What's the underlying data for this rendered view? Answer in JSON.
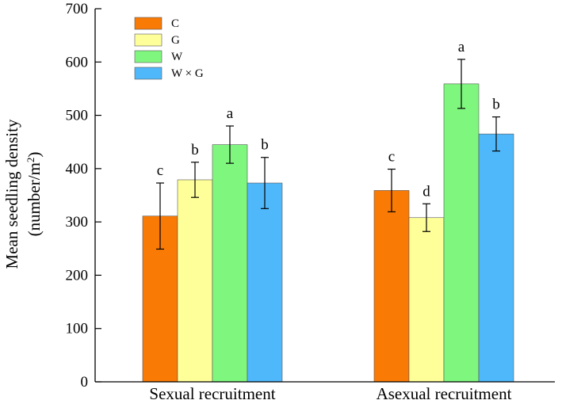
{
  "chart_data": {
    "type": "bar",
    "categories": [
      "Sexual recruitment",
      "Asexual recruitment"
    ],
    "ylabel_line1": "Mean seedling density",
    "ylabel_line2": "(number/m",
    "ylabel_sup": "2",
    "ylabel_close": ")",
    "ylim": [
      0,
      700
    ],
    "yticks": [
      0,
      100,
      200,
      300,
      400,
      500,
      600,
      700
    ],
    "grid": false,
    "legend_position": "top-left",
    "series": [
      {
        "name": "C",
        "color": "#f97a05",
        "values": [
          311,
          359
        ],
        "errors": [
          62,
          40
        ],
        "letters": [
          "c",
          "c"
        ]
      },
      {
        "name": "G",
        "color": "#ffff99",
        "values": [
          379,
          308
        ],
        "errors": [
          33,
          26
        ],
        "letters": [
          "b",
          "d"
        ]
      },
      {
        "name": "W",
        "color": "#7ff77f",
        "values": [
          445,
          559
        ],
        "errors": [
          35,
          46
        ],
        "letters": [
          "a",
          "a"
        ]
      },
      {
        "name": "W × G",
        "color": "#4fb8fb",
        "values": [
          373,
          465
        ],
        "errors": [
          48,
          32
        ],
        "letters": [
          "b",
          "b"
        ]
      }
    ]
  }
}
